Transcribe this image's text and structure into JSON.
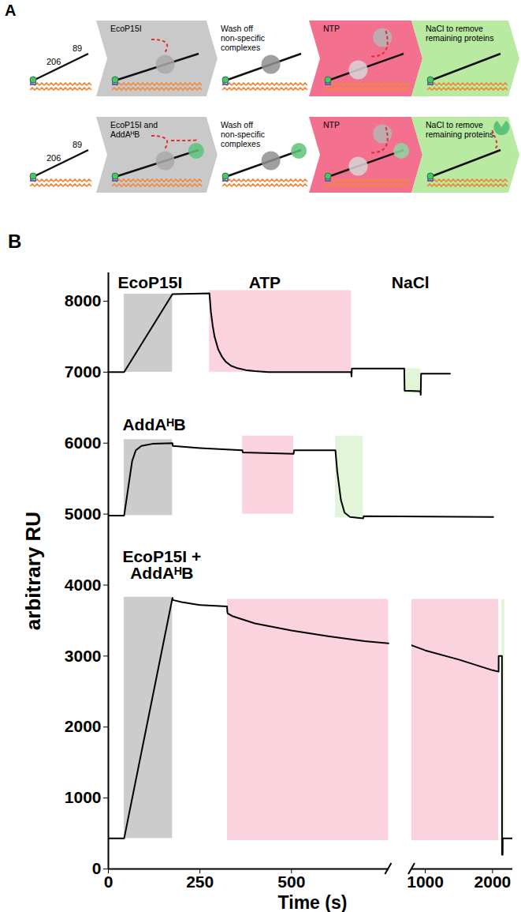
{
  "panel_a": {
    "label": "A",
    "rows": [
      {
        "dna_labels": [
          "206",
          "89"
        ],
        "stages": [
          {
            "color": "#ffffff"
          },
          {
            "color": "#c9c9c9",
            "text": [
              "EcoP15I"
            ]
          },
          {
            "color": "#ffffff",
            "text": [
              "Wash off",
              "non-specific",
              "complexes"
            ]
          },
          {
            "color": "#f4708f",
            "text": [
              "NTP"
            ]
          },
          {
            "color": "#b8eaa2",
            "text": [
              "NaCl to remove",
              "remaining proteins"
            ]
          }
        ]
      },
      {
        "dna_labels": [
          "206",
          "89"
        ],
        "stages": [
          {
            "color": "#ffffff"
          },
          {
            "color": "#c9c9c9",
            "text": [
              "EcoP15I and",
              "AddAᴴB"
            ]
          },
          {
            "color": "#ffffff",
            "text": [
              "Wash off",
              "non-specific",
              "complexes"
            ]
          },
          {
            "color": "#f4708f",
            "text": [
              "NTP"
            ]
          },
          {
            "color": "#b8eaa2",
            "text": [
              "NaCl to remove",
              "remaining proteins"
            ]
          }
        ]
      }
    ]
  },
  "chart_data": {
    "type": "line",
    "panel_label": "B",
    "x_label": "Time (s)",
    "y_label": "arbitrary RU",
    "xlim": [
      0,
      1115
    ],
    "xticks": [
      0,
      250,
      500
    ],
    "x_break": 765,
    "x2lim": [
      800,
      2300
    ],
    "x2ticks": [
      1000,
      2000
    ],
    "ylim": [
      0,
      8400
    ],
    "yticks": [
      0,
      1000,
      2000,
      3000,
      4000,
      5000,
      6000,
      7000,
      8000
    ],
    "color": "#000000",
    "annotations": [
      {
        "text": "EcoP15I",
        "x": 114,
        "y": 8260
      },
      {
        "text": "ATP",
        "x": 427,
        "y": 8260
      },
      {
        "text": "NaCl",
        "x": 825,
        "y": 8260
      },
      {
        "text": "AddAᴴB",
        "x": 125,
        "y": 6250
      },
      {
        "text": "EcoP15I +\nAddAᴴB",
        "x": 146,
        "y": 4280
      }
    ],
    "series": [
      {
        "x": [
          0,
          43,
          175,
          276,
          280,
          285,
          290,
          300,
          310,
          320,
          335,
          350,
          375,
          400,
          437,
          500,
          600,
          663,
          664,
          665,
          808,
          809,
          852,
          853,
          854,
          933
        ],
        "values": [
          7000,
          7000,
          8100,
          8110,
          7850,
          7650,
          7500,
          7320,
          7220,
          7150,
          7090,
          7060,
          7030,
          7015,
          7000,
          7000,
          7000,
          7000,
          6940,
          7050,
          7050,
          6740,
          6730,
          6680,
          6980,
          6980
        ],
        "regions": [
          {
            "color": "#cccccc",
            "x": [
              43,
              175
            ],
            "y": [
              7000,
              8100
            ]
          },
          {
            "color": "#fbd3df",
            "x": [
              276,
              664
            ],
            "y": [
              7000,
              8150
            ]
          },
          {
            "color": "#e2f5d8",
            "x": [
              808,
              853
            ],
            "y": [
              6700,
              7050
            ]
          }
        ]
      },
      {
        "x": [
          0,
          43,
          55,
          65,
          75,
          90,
          120,
          175,
          176,
          250,
          366,
          367,
          506,
          507,
          620,
          625,
          635,
          645,
          660,
          696,
          697,
          1051
        ],
        "values": [
          4980,
          4980,
          5400,
          5750,
          5900,
          5960,
          5990,
          6000,
          5960,
          5930,
          5900,
          5870,
          5850,
          5900,
          5900,
          5600,
          5200,
          5020,
          4960,
          4940,
          4970,
          4960
        ],
        "regions": [
          {
            "color": "#cccccc",
            "x": [
              43,
              175
            ],
            "y": [
              4980,
              6050
            ]
          },
          {
            "color": "#fbd3df",
            "x": [
              366,
              506
            ],
            "y": [
              5000,
              6100
            ]
          },
          {
            "color": "#e2f5d8",
            "x": [
              620,
              696
            ],
            "y": [
              4950,
              6100
            ]
          }
        ]
      },
      {
        "axis": "x2",
        "x": [
          0,
          43,
          175,
          176,
          200,
          250,
          324,
          325,
          326,
          340,
          400,
          500,
          600,
          700,
          765,
          800,
          1000,
          1500,
          2000,
          2090,
          2091,
          2140,
          2141,
          2150,
          2151,
          2300
        ],
        "values": [
          430,
          430,
          3820,
          3790,
          3760,
          3720,
          3700,
          3620,
          3600,
          3560,
          3460,
          3360,
          3280,
          3210,
          3180,
          3150,
          3080,
          2950,
          2800,
          2780,
          3000,
          3000,
          200,
          200,
          430,
          430
        ],
        "regions": [
          {
            "color": "#cccccc",
            "x": [
              43,
              175
            ],
            "y": [
              430,
              3830
            ]
          },
          {
            "color": "#fbd3df",
            "x": [
              325,
              2090
            ],
            "y": [
              400,
              3800
            ]
          },
          {
            "color": "#e2f5d8",
            "x": [
              2135,
              2180
            ],
            "y": [
              200,
              3800
            ]
          }
        ]
      }
    ]
  }
}
